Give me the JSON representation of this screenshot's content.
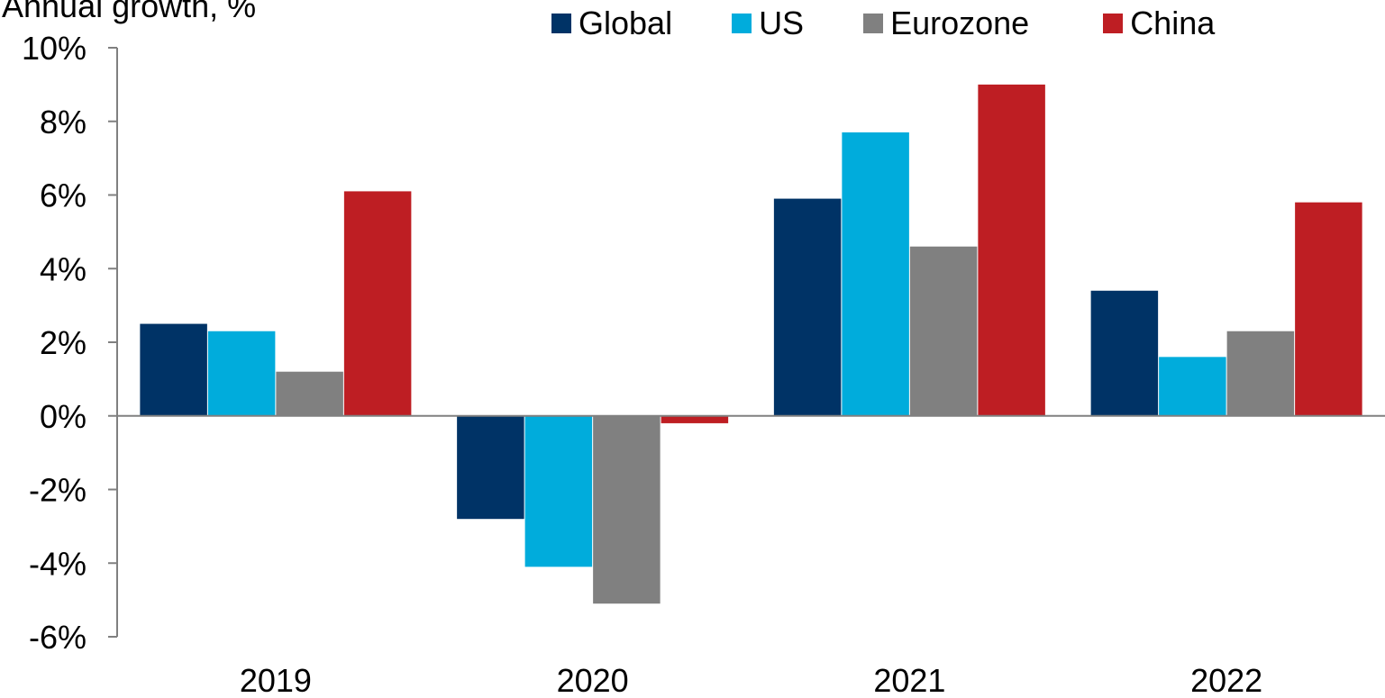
{
  "chart_data": {
    "type": "bar",
    "title": "",
    "ylabel": "Annual growth, %",
    "xlabel": "",
    "ylim": [
      -6,
      10
    ],
    "yticks": [
      10,
      8,
      6,
      4,
      2,
      0,
      -2,
      -4,
      -6
    ],
    "ytick_labels": [
      "10%",
      "8%",
      "6%",
      "4%",
      "2%",
      "0%",
      "-2%",
      "-4%",
      "-6%"
    ],
    "categories": [
      "2019",
      "2020",
      "2021",
      "2022"
    ],
    "grid": false,
    "legend_position": "top",
    "series": [
      {
        "name": "Global",
        "color": "#003366",
        "values": [
          2.5,
          -2.8,
          5.9,
          3.4
        ]
      },
      {
        "name": "US",
        "color": "#00ACDC",
        "values": [
          2.3,
          -4.1,
          7.7,
          1.6
        ]
      },
      {
        "name": "Eurozone",
        "color": "#808080",
        "values": [
          1.2,
          -5.1,
          4.6,
          2.3
        ]
      },
      {
        "name": "China",
        "color": "#BE1E23",
        "values": [
          6.1,
          -0.2,
          9.0,
          5.8
        ]
      }
    ]
  }
}
